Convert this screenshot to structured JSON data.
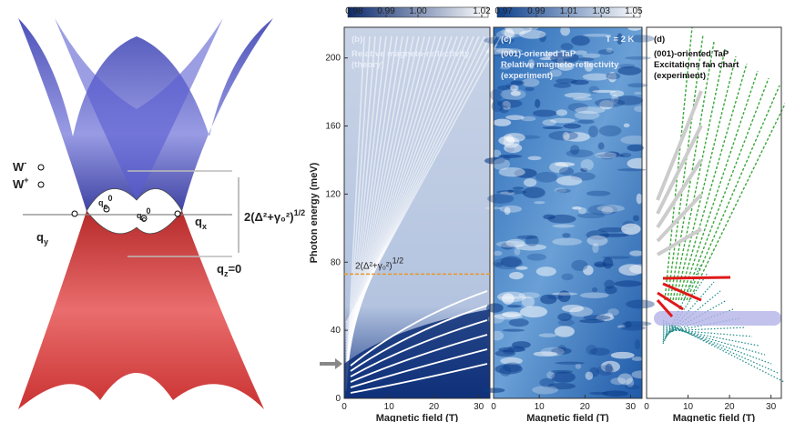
{
  "diagram": {
    "labels": [
      {
        "text": "W",
        "sup": "-"
      },
      {
        "text": "W",
        "sup": "+"
      },
      {
        "text": "q",
        "sub": "y"
      },
      {
        "text": "q",
        "sub": "x"
      },
      {
        "text": "q",
        "sub": "z",
        "tail": "=0"
      },
      {
        "text": "q",
        "sub": "c",
        "sup": "0"
      },
      {
        "text": "q",
        "sub": "c",
        "sup": "0"
      }
    ],
    "gap_label": {
      "text": "2(Δ²+γ₀²)",
      "sup": "1/2"
    }
  },
  "chart_data": [
    {
      "type": "heatmap",
      "panel": "(b)",
      "annotations": [
        "Relative magneto-reflectivity",
        "(theory)"
      ],
      "ylabel": "Photon energy (meV)",
      "xlabel": "Magnetic field (T)",
      "xlim": [
        0,
        32.5
      ],
      "ylim": [
        0,
        218
      ],
      "xticks": [
        0,
        10,
        20,
        30
      ],
      "yticks": [
        0,
        40,
        80,
        120,
        160,
        200
      ],
      "colorbar": {
        "cmap": [
          "#0b2a6e",
          "#ffffff"
        ],
        "clim": [
          0.978,
          1.022
        ],
        "ticks": [
          0.98,
          0.99,
          {
            "value": 1.0,
            "label": "1.00"
          },
          1.02
        ]
      },
      "hline": {
        "value": 73,
        "color": "#e8962a",
        "label": {
          "text": "2(Δ²+γ₀²)",
          "sup": "1/2"
        }
      }
    },
    {
      "type": "heatmap",
      "panel": "(c)",
      "annotations": [
        "(001)-oriented TaP",
        "Relative magneto-reflectivity",
        "(experiment)",
        "T = 2 K"
      ],
      "xlabel": "Magnetic field (T)",
      "xlim": [
        0,
        32.5
      ],
      "ylim": [
        0,
        218
      ],
      "xticks": [
        0,
        10,
        20,
        30
      ],
      "colorbar": {
        "cmap": [
          "#0b3f8c",
          "#ffffff"
        ],
        "clim": [
          0.966,
          1.054
        ],
        "ticks": [
          0.97,
          0.99,
          1.01,
          1.03,
          1.05
        ]
      }
    },
    {
      "type": "fan",
      "panel": "(d)",
      "annotations": [
        "(001)-oriented TaP",
        "Excitations fan chart",
        "(experiment)"
      ],
      "xlabel": "Magnetic field (T)",
      "xlim": [
        0,
        32.5
      ],
      "ylim": [
        0,
        218
      ],
      "xticks": [
        0,
        10,
        20,
        30
      ]
    }
  ]
}
